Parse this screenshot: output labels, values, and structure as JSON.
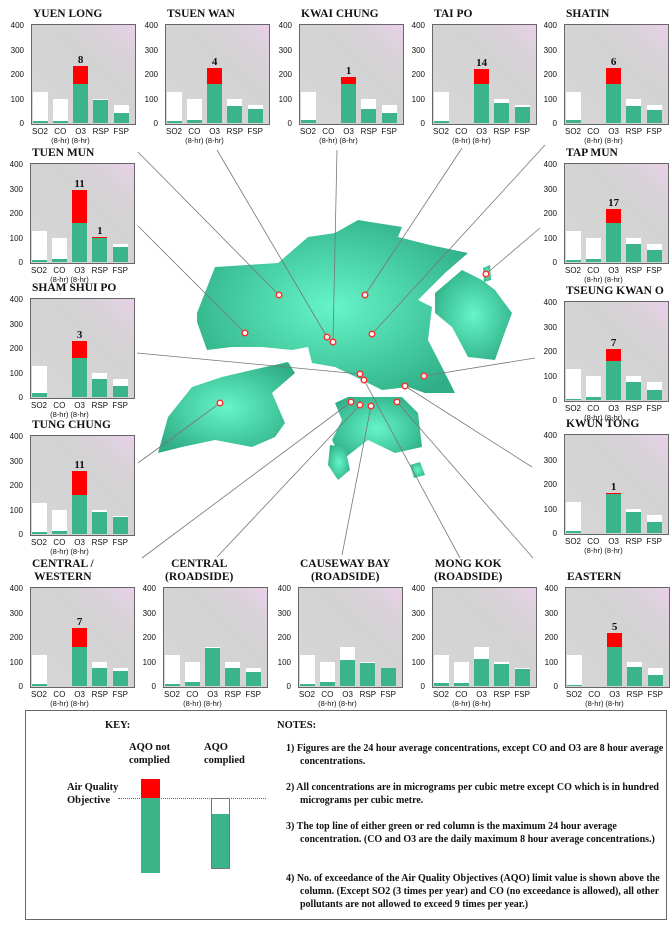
{
  "chart_data": {
    "type": "bar",
    "title": "",
    "ylim": [
      0,
      400
    ],
    "y_ticks": [
      "400",
      "300",
      "200",
      "100",
      "0"
    ],
    "categories": [
      {
        "label": "SO2",
        "sub": ""
      },
      {
        "label": "CO",
        "sub": "(8-hr)"
      },
      {
        "label": "O3",
        "sub": "(8-hr)"
      },
      {
        "label": "RSP",
        "sub": ""
      },
      {
        "label": "FSP",
        "sub": ""
      }
    ],
    "aqo_limits": [
      125,
      100,
      160,
      100,
      75
    ],
    "colors": {
      "complied": "#3cb48a",
      "exceeded": "#ff0000",
      "limit": "#ffffff",
      "plot_bg": "#d3d3d3",
      "map": "#3cc896"
    },
    "stations": [
      {
        "name": "YUEN LONG",
        "values": [
          8,
          10,
          233,
          95,
          42
        ],
        "exceedances": [
          null,
          null,
          "8",
          null,
          null
        ]
      },
      {
        "name": "TSUEN WAN",
        "values": [
          10,
          12,
          226,
          70,
          57
        ],
        "exceedances": [
          null,
          null,
          "4",
          null,
          null
        ]
      },
      {
        "name": "KWAI CHUNG",
        "values": [
          13,
          null,
          188,
          57,
          42
        ],
        "exceedances": [
          null,
          null,
          "1",
          null,
          null
        ]
      },
      {
        "name": "TAI PO",
        "values": [
          7,
          null,
          222,
          82,
          65
        ],
        "exceedances": [
          null,
          null,
          "14",
          null,
          null
        ]
      },
      {
        "name": "SHATIN",
        "values": [
          13,
          null,
          224,
          70,
          55
        ],
        "exceedances": [
          null,
          null,
          "6",
          null,
          null
        ]
      },
      {
        "name": "TUEN MUN",
        "values": [
          10,
          14,
          295,
          102,
          60
        ],
        "exceedances": [
          null,
          null,
          "11",
          "1",
          null
        ]
      },
      {
        "name": "SHAM SHUI PO",
        "values": [
          15,
          null,
          228,
          73,
          43
        ],
        "exceedances": [
          null,
          null,
          "3",
          null,
          null
        ]
      },
      {
        "name": "TUNG CHUNG",
        "values": [
          8,
          12,
          257,
          88,
          68
        ],
        "exceedances": [
          null,
          null,
          "11",
          null,
          null
        ]
      },
      {
        "name": "TAP MUN",
        "values": [
          8,
          12,
          215,
          73,
          48
        ],
        "exceedances": [
          null,
          null,
          "17",
          null,
          null
        ]
      },
      {
        "name": "TSEUNG KWAN O",
        "values": [
          5,
          13,
          210,
          72,
          40
        ],
        "exceedances": [
          null,
          null,
          "7",
          null,
          null
        ]
      },
      {
        "name": "KWUN TONG",
        "values": [
          7,
          null,
          162,
          85,
          45
        ],
        "exceedances": [
          null,
          null,
          "1",
          null,
          null
        ]
      },
      {
        "name": "CENTRAL /\nWESTERN",
        "values": [
          7,
          null,
          237,
          75,
          62
        ],
        "exceedances": [
          null,
          null,
          "7",
          null,
          null
        ]
      },
      {
        "name": "CENTRAL\n(ROADSIDE)",
        "values": [
          10,
          15,
          155,
          75,
          58
        ],
        "exceedances": [
          null,
          null,
          null,
          null,
          null
        ]
      },
      {
        "name": "CAUSEWAY BAY\n(ROADSIDE)",
        "values": [
          10,
          15,
          108,
          92,
          72
        ],
        "exceedances": [
          null,
          null,
          null,
          null,
          null
        ]
      },
      {
        "name": "MONG KOK\n(ROADSIDE)",
        "values": [
          12,
          12,
          110,
          88,
          70
        ],
        "exceedances": [
          null,
          null,
          null,
          null,
          null
        ]
      },
      {
        "name": "EASTERN",
        "values": [
          6,
          null,
          218,
          78,
          45
        ],
        "exceedances": [
          null,
          null,
          "5",
          null,
          null
        ]
      }
    ]
  },
  "key": {
    "heading": "KEY:",
    "not_complied": "AQO not\ncomplied",
    "complied": "AQO\ncomplied",
    "objective_label": "Air Quality\nObjective"
  },
  "notes": {
    "heading": "NOTES:",
    "items": [
      "1) Figures are the 24 hour average concentrations, except CO and O3 are 8 hour average concentrations.",
      "2) All concentrations are in micrograms per cubic metre except CO which is in hundred micrograms per cubic metre.",
      "3) The top line of either green or red column is the maximum 24 hour average concentration. (CO and O3 are the daily maximum 8 hour average concentrations.)",
      "4) No. of exceedance of the Air Quality Objectives (AQO) limit value is shown above the column. (Except SO2 (3 times per year) and CO (no exceedance is allowed), all other pollutants are not allowed to exceed 9 times per year.)"
    ]
  }
}
